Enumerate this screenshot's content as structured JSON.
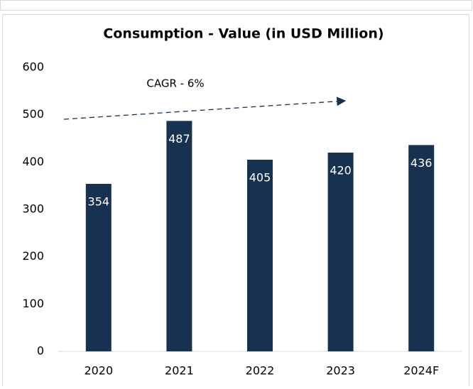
{
  "chart_data": {
    "type": "bar",
    "title": "Consumption - Value (in USD Million)",
    "categories": [
      "2020",
      "2021",
      "2022",
      "2023",
      "2024F"
    ],
    "values": [
      354,
      487,
      405,
      420,
      436
    ],
    "color": "#163250",
    "ylim": [
      0,
      600
    ],
    "yticks": [
      0,
      100,
      200,
      300,
      400,
      500,
      600
    ],
    "annotation": "CAGR - 6%"
  }
}
